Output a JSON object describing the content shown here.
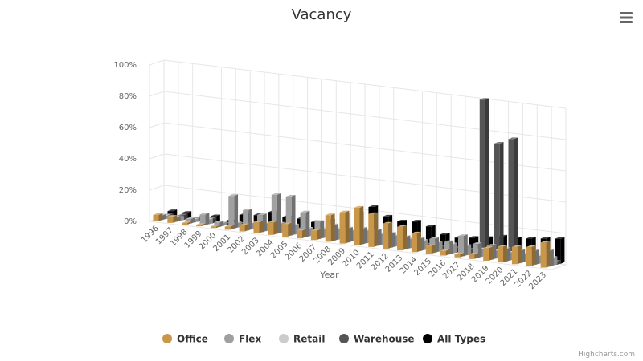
{
  "chart_data": {
    "type": "bar",
    "title": "Vacancy",
    "xlabel": "Year",
    "ylabel": "",
    "ylim": [
      0,
      100
    ],
    "yticks": [
      "0%",
      "20%",
      "40%",
      "60%",
      "80%",
      "100%"
    ],
    "categories": [
      "1996",
      "1997",
      "1998",
      "1999",
      "2000",
      "2001",
      "2002",
      "2003",
      "2004",
      "2005",
      "2006",
      "2007",
      "2008",
      "2009",
      "2010",
      "2011",
      "2012",
      "2013",
      "2014",
      "2015",
      "2016",
      "2017",
      "2018",
      "2019",
      "2020",
      "2021",
      "2022",
      "2023"
    ],
    "series": [
      {
        "name": "Office",
        "color": "#c9974a",
        "values": [
          4,
          4,
          1,
          1,
          1,
          2,
          4,
          7,
          8,
          8,
          5,
          6,
          17,
          20,
          24,
          21,
          16,
          15,
          12,
          5,
          3,
          2,
          3,
          8,
          10,
          11,
          12,
          16
        ]
      },
      {
        "name": "Flex",
        "color": "#a0a0a0",
        "values": [
          3,
          3,
          3,
          7,
          3,
          21,
          13,
          11,
          25,
          25,
          16,
          11,
          10,
          9,
          10,
          10,
          9,
          8,
          8,
          9,
          8,
          13,
          9,
          9,
          8,
          8,
          9,
          10
        ]
      },
      {
        "name": "Retail",
        "color": "#cccccc",
        "values": [
          2,
          2,
          2,
          3,
          2,
          3,
          4,
          5,
          6,
          6,
          5,
          6,
          7,
          7,
          8,
          7,
          7,
          6,
          6,
          6,
          6,
          6,
          5,
          5,
          5,
          5,
          5,
          5
        ]
      },
      {
        "name": "Warehouse",
        "color": "#555555",
        "values": [
          2,
          3,
          2,
          3,
          1,
          2,
          2,
          3,
          3,
          3,
          2,
          2,
          3,
          3,
          3,
          3,
          3,
          3,
          3,
          3,
          3,
          3,
          100,
          73,
          77,
          2,
          2,
          2
        ]
      },
      {
        "name": "All Types",
        "color": "#000000",
        "values": [
          4,
          4,
          2,
          4,
          2,
          7,
          8,
          11,
          9,
          9,
          8,
          10,
          15,
          17,
          22,
          17,
          15,
          16,
          14,
          10,
          9,
          10,
          11,
          13,
          13,
          14,
          15,
          16
        ]
      }
    ],
    "legend_position": "bottom-center",
    "grid": true
  },
  "credits": "Highcharts.com",
  "menu_icon": "hamburger-menu-icon"
}
